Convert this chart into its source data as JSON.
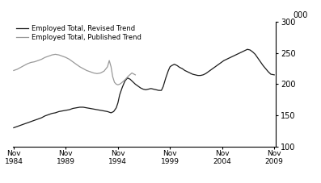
{
  "title": "",
  "ylabel": "000",
  "ylim": [
    100,
    300
  ],
  "yticks": [
    100,
    150,
    200,
    250,
    300
  ],
  "xlim_start": 1984.75,
  "xlim_end": 2010.0,
  "xtick_years": [
    1984,
    1989,
    1994,
    1999,
    2004,
    2009
  ],
  "xtick_labels": [
    "Nov\n1984",
    "Nov\n1989",
    "Nov\n1994",
    "Nov\n1999",
    "Nov\n2004",
    "Nov\n2009"
  ],
  "legend_entries": [
    "Employed Total, Revised Trend",
    "Employed Total, Published Trend"
  ],
  "line_colors": [
    "#1a1a1a",
    "#999999"
  ],
  "background_color": "#ffffff",
  "revised_x": [
    1984.83,
    1985.17,
    1985.5,
    1985.83,
    1986.17,
    1986.5,
    1986.83,
    1987.17,
    1987.5,
    1987.83,
    1988.17,
    1988.5,
    1988.83,
    1989.17,
    1989.5,
    1989.83,
    1990.17,
    1990.5,
    1990.83,
    1991.17,
    1991.5,
    1991.83,
    1992.17,
    1992.5,
    1992.83,
    1993.17,
    1993.5,
    1993.83,
    1994.0,
    1994.17,
    1994.42,
    1994.67,
    1994.83,
    1995.0,
    1995.25,
    1995.5,
    1995.75,
    1996.0,
    1996.25,
    1996.5,
    1996.75,
    1997.0,
    1997.25,
    1997.5,
    1997.75,
    1998.0,
    1998.25,
    1998.5,
    1998.75,
    1999.0,
    1999.17,
    1999.42,
    1999.67,
    1999.83,
    2000.0,
    2000.25,
    2000.5,
    2000.75,
    2001.0,
    2001.25,
    2001.5,
    2001.75,
    2002.0,
    2002.25,
    2002.5,
    2002.75,
    2003.0,
    2003.25,
    2003.5,
    2003.75,
    2004.0,
    2004.25,
    2004.5,
    2004.75,
    2005.0,
    2005.25,
    2005.5,
    2005.75,
    2006.0,
    2006.25,
    2006.5,
    2006.75,
    2007.0,
    2007.25,
    2007.5,
    2007.75,
    2008.0,
    2008.25,
    2008.5,
    2008.75,
    2009.0,
    2009.25,
    2009.5,
    2009.83
  ],
  "revised_y": [
    130,
    132,
    134,
    136,
    138,
    140,
    142,
    144,
    146,
    149,
    151,
    153,
    154,
    156,
    157,
    158,
    159,
    161,
    162,
    163,
    163,
    162,
    161,
    160,
    159,
    158,
    157,
    156,
    155,
    154,
    156,
    162,
    170,
    183,
    195,
    205,
    210,
    208,
    204,
    200,
    197,
    194,
    192,
    191,
    192,
    193,
    192,
    191,
    190,
    190,
    196,
    210,
    222,
    228,
    230,
    232,
    230,
    227,
    225,
    222,
    220,
    218,
    216,
    215,
    214,
    214,
    215,
    217,
    220,
    223,
    226,
    229,
    232,
    235,
    238,
    240,
    242,
    244,
    246,
    248,
    250,
    252,
    254,
    256,
    255,
    252,
    248,
    242,
    236,
    230,
    225,
    220,
    216,
    215
  ],
  "published_x": [
    1984.83,
    1985.17,
    1985.5,
    1985.83,
    1986.17,
    1986.5,
    1986.83,
    1987.17,
    1987.5,
    1987.83,
    1988.17,
    1988.5,
    1988.83,
    1989.17,
    1989.5,
    1989.83,
    1990.17,
    1990.5,
    1990.83,
    1991.17,
    1991.5,
    1991.83,
    1992.17,
    1992.5,
    1992.83,
    1993.17,
    1993.5,
    1993.83,
    1994.0,
    1994.17,
    1994.33,
    1994.5,
    1994.67,
    1994.83,
    1995.0,
    1995.17,
    1995.5,
    1995.83,
    1996.17,
    1996.5
  ],
  "published_y": [
    222,
    224,
    227,
    230,
    233,
    235,
    236,
    238,
    240,
    243,
    245,
    247,
    248,
    247,
    245,
    243,
    240,
    236,
    232,
    228,
    225,
    222,
    220,
    218,
    217,
    218,
    221,
    228,
    238,
    228,
    212,
    203,
    200,
    199,
    200,
    202,
    207,
    213,
    218,
    215
  ]
}
